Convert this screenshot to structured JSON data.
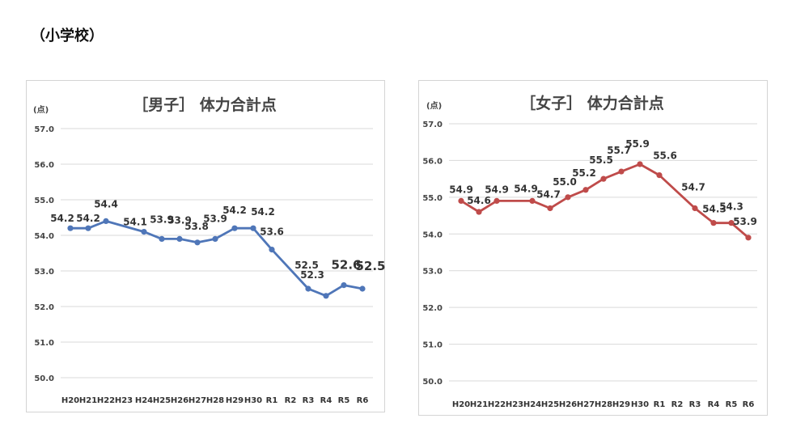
{
  "page": {
    "heading": "（小学校）"
  },
  "chart_data": [
    {
      "type": "line",
      "title": "［男子］ 体力合計点",
      "unit_label": "(点)",
      "categories": [
        "H20",
        "H21",
        "H22",
        "H23",
        "H24",
        "H25",
        "H26",
        "H27",
        "H28",
        "H29",
        "H30",
        "R1",
        "R2",
        "R3",
        "R4",
        "R5",
        "R6"
      ],
      "series": [
        {
          "values": [
            54.2,
            54.2,
            54.4,
            null,
            54.1,
            53.9,
            53.9,
            53.8,
            53.9,
            54.2,
            54.2,
            53.6,
            null,
            52.5,
            52.3,
            52.6,
            52.5
          ],
          "color": "#4f76b8"
        }
      ],
      "ylim": [
        50.0,
        57.0
      ],
      "yticks": [
        "57.0",
        "56.0",
        "55.0",
        "54.0",
        "53.0",
        "52.0",
        "51.0",
        "50.0"
      ],
      "grid": true,
      "legend": "none"
    },
    {
      "type": "line",
      "title": "［女子］ 体力合計点",
      "unit_label": "(点)",
      "categories": [
        "H20",
        "H21",
        "H22",
        "H23",
        "H24",
        "H25",
        "H26",
        "H27",
        "H28",
        "H29",
        "H30",
        "R1",
        "R2",
        "R3",
        "R4",
        "R5",
        "R6"
      ],
      "series": [
        {
          "values": [
            54.9,
            54.6,
            54.9,
            null,
            54.9,
            54.7,
            55.0,
            55.2,
            55.5,
            55.7,
            55.9,
            55.6,
            null,
            54.7,
            54.3,
            54.3,
            53.9
          ],
          "color": "#bf4b4a"
        }
      ],
      "ylim": [
        50.0,
        57.0
      ],
      "yticks": [
        "57.0",
        "56.0",
        "55.0",
        "54.0",
        "53.0",
        "52.0",
        "51.0",
        "50.0"
      ],
      "grid": true,
      "legend": "none"
    }
  ]
}
